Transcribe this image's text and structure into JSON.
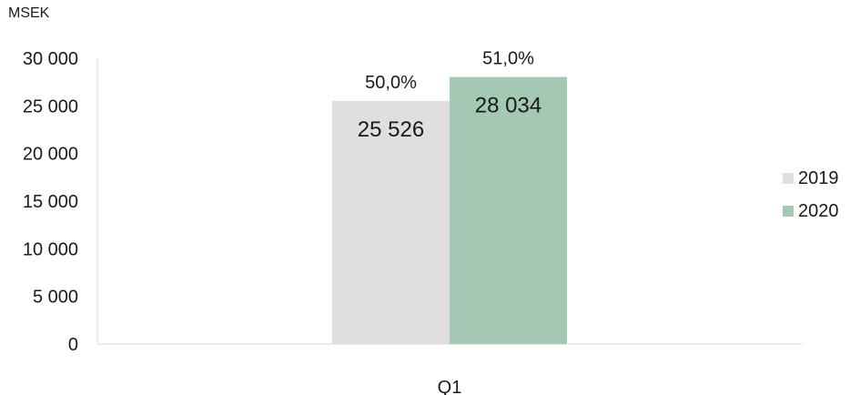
{
  "chart_data": {
    "type": "bar",
    "ylabel": "MSEK",
    "categories": [
      "Q1"
    ],
    "ylim": [
      0,
      30000
    ],
    "yticks": [
      {
        "value": 0,
        "label": "0"
      },
      {
        "value": 5000,
        "label": "5 000"
      },
      {
        "value": 10000,
        "label": "10 000"
      },
      {
        "value": 15000,
        "label": "15 000"
      },
      {
        "value": 20000,
        "label": "20 000"
      },
      {
        "value": 25000,
        "label": "25 000"
      },
      {
        "value": 30000,
        "label": "30 000"
      }
    ],
    "series": [
      {
        "name": "2019",
        "color": "#e0dfdd",
        "values": [
          25526
        ],
        "value_labels": [
          "25 526"
        ],
        "pct_labels": [
          "50,0%"
        ]
      },
      {
        "name": "2020",
        "color": "#a3c9b5",
        "values": [
          28034
        ],
        "value_labels": [
          "28 034"
        ],
        "pct_labels": [
          "51,0%"
        ]
      }
    ],
    "legend_position": "right",
    "grid": false
  }
}
